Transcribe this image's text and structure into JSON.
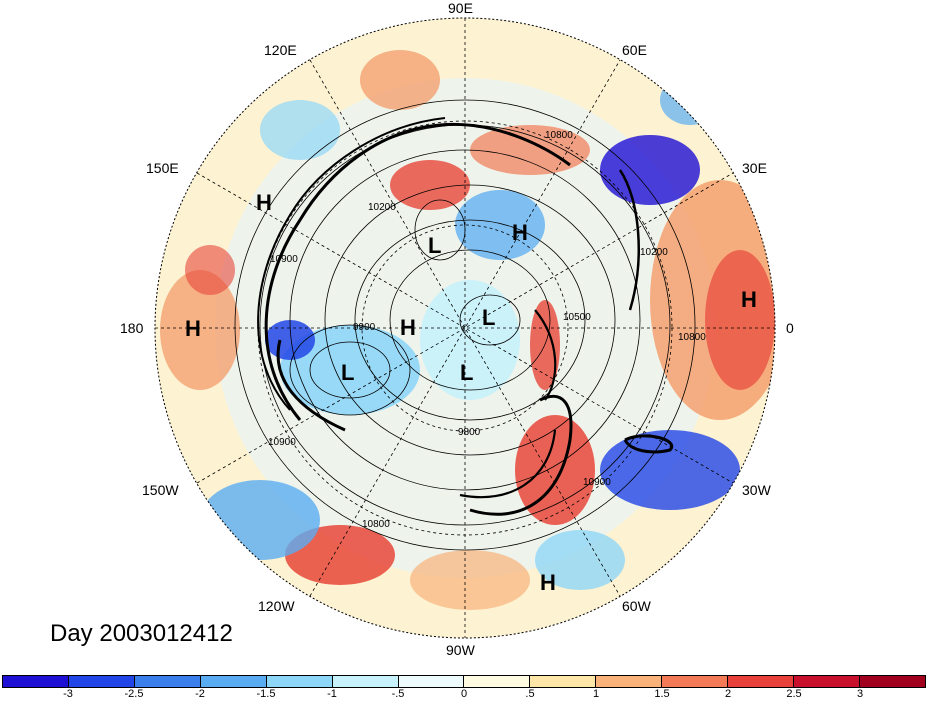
{
  "lon_labels": {
    "e90": "90E",
    "e60": "60E",
    "e30": "30E",
    "zero": "0",
    "w30": "30W",
    "w60": "60W",
    "w90": "90W",
    "w120": "120W",
    "w150": "150W",
    "deg180": "180",
    "e150": "150E",
    "e120": "120E"
  },
  "day_label": "Day 2003012412",
  "pressure_markers": {
    "h1": "H",
    "h2": "H",
    "h3": "H",
    "h4": "H",
    "h5": "H",
    "h6": "H",
    "l1": "L",
    "l2": "L",
    "l3": "L",
    "l4": "L"
  },
  "contour_labels": {
    "c1": "10800",
    "c2": "10200",
    "c3": "10900",
    "c4": "9900",
    "c5": "10200",
    "c6": "10500",
    "c7": "10800",
    "c8": "9800",
    "c9": "10900",
    "c10": "10900",
    "c11": "10800"
  },
  "colorbar": {
    "colors": [
      "#1e0fd4",
      "#2145e6",
      "#3a7fec",
      "#5aacf2",
      "#8ed6f8",
      "#c7f1fb",
      "#eefbfd",
      "#fffbe0",
      "#fde6a8",
      "#f8b27a",
      "#f27a56",
      "#e8413b",
      "#c8102c",
      "#a0001e"
    ],
    "ticks": [
      "-3",
      "-2.5",
      "-2",
      "-1.5",
      "-1",
      "-.5",
      "0",
      ".5",
      "1",
      "1.5",
      "2",
      "2.5",
      "3"
    ]
  }
}
